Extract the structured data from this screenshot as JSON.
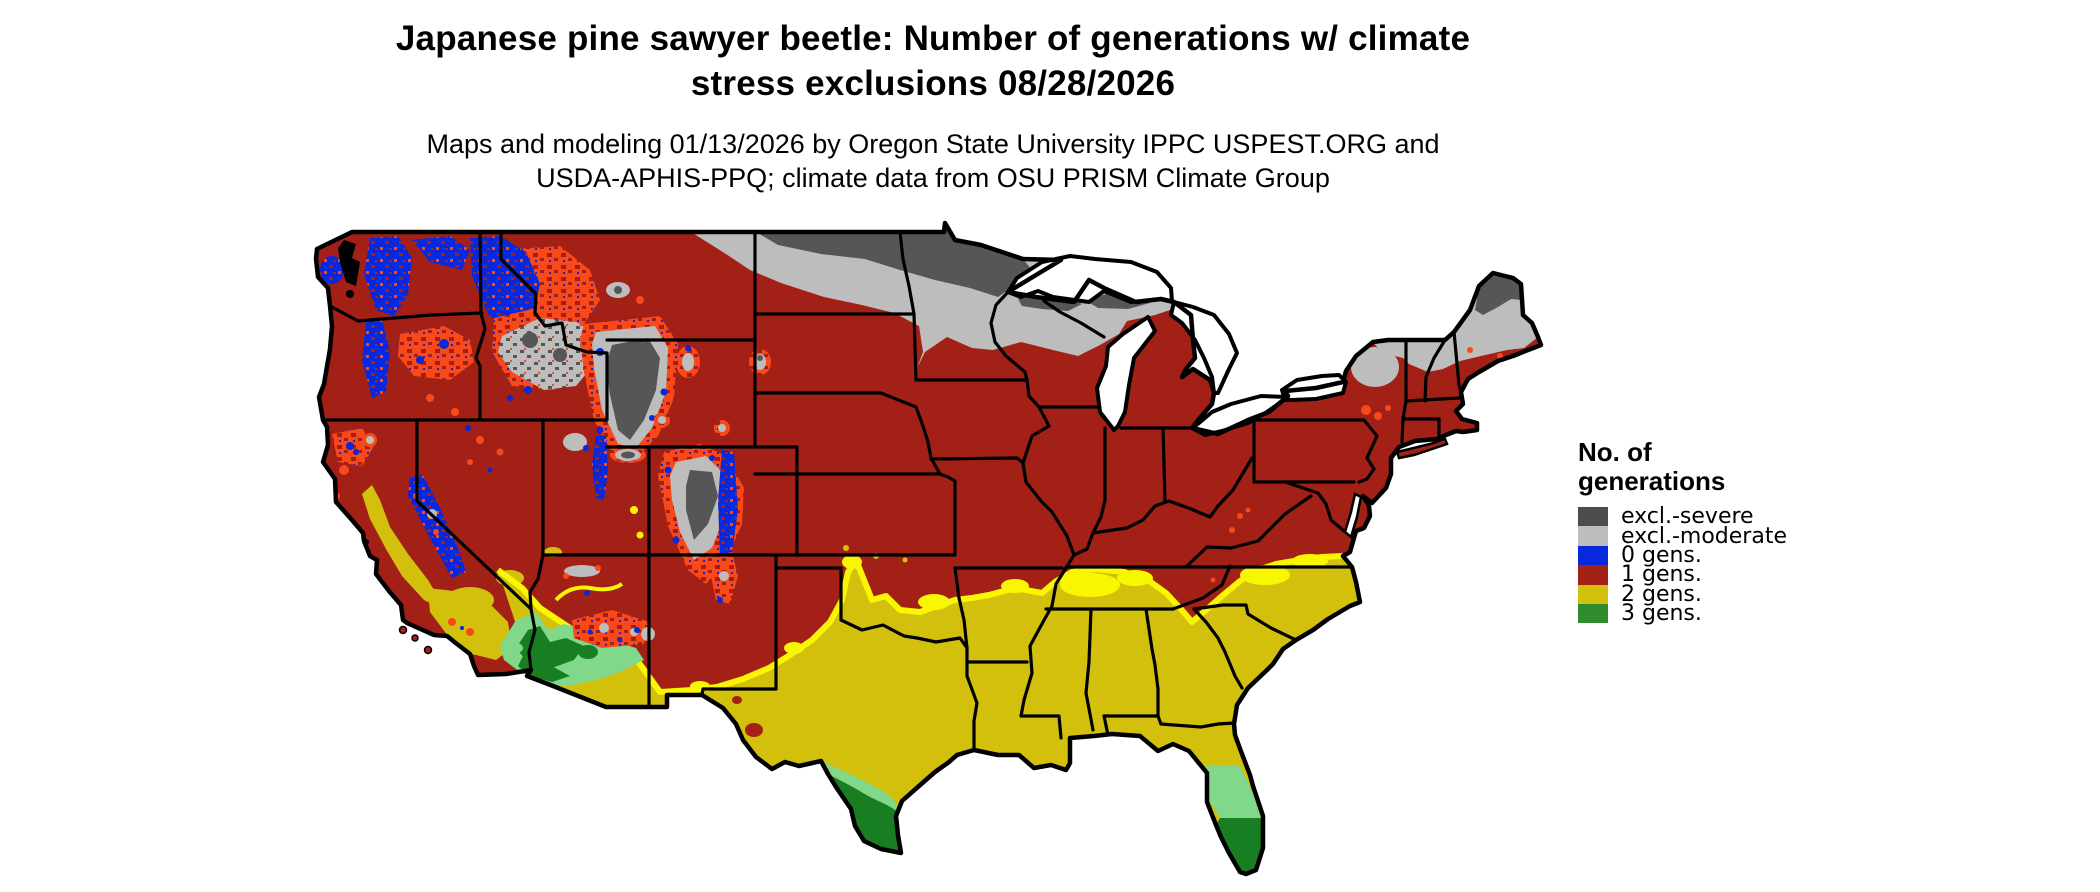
{
  "title": {
    "line1": "Japanese pine sawyer beetle: Number of generations w/ climate",
    "line2": "stress exclusions 08/28/2026"
  },
  "subtitle": {
    "line1": "Maps and modeling 01/13/2026 by Oregon State University IPPC USPEST.ORG and",
    "line2": "USDA-APHIS-PPQ; climate data from OSU PRISM Climate Group"
  },
  "legend": {
    "title_line1": "No. of",
    "title_line2": "generations",
    "items": [
      {
        "label": "excl.-severe",
        "color": "#4D4D4D"
      },
      {
        "label": "excl.-moderate",
        "color": "#BDBDBD"
      },
      {
        "label": "0 gens.",
        "color": "#0728DC"
      },
      {
        "label": "1 gens.",
        "color": "#A32017"
      },
      {
        "label": "2 gens.",
        "color": "#D3C00D"
      },
      {
        "label": "3 gens.",
        "color": "#2E8B2E"
      }
    ]
  },
  "map": {
    "region": "Contiguous United States",
    "colors": {
      "background": "#FFFFFF",
      "state_border": "#000000",
      "excl_severe": "#565656",
      "excl_moderate": "#BDBDBD",
      "gens0_blue": "#0728DC",
      "gens1_red": "#A32017",
      "gens2_gold": "#D3C00D",
      "gens3_green": "#177E22",
      "transition_orange": "#F9481A",
      "transition_bright_yellow": "#F9F602",
      "transition_light_green": "#81D88A"
    }
  }
}
